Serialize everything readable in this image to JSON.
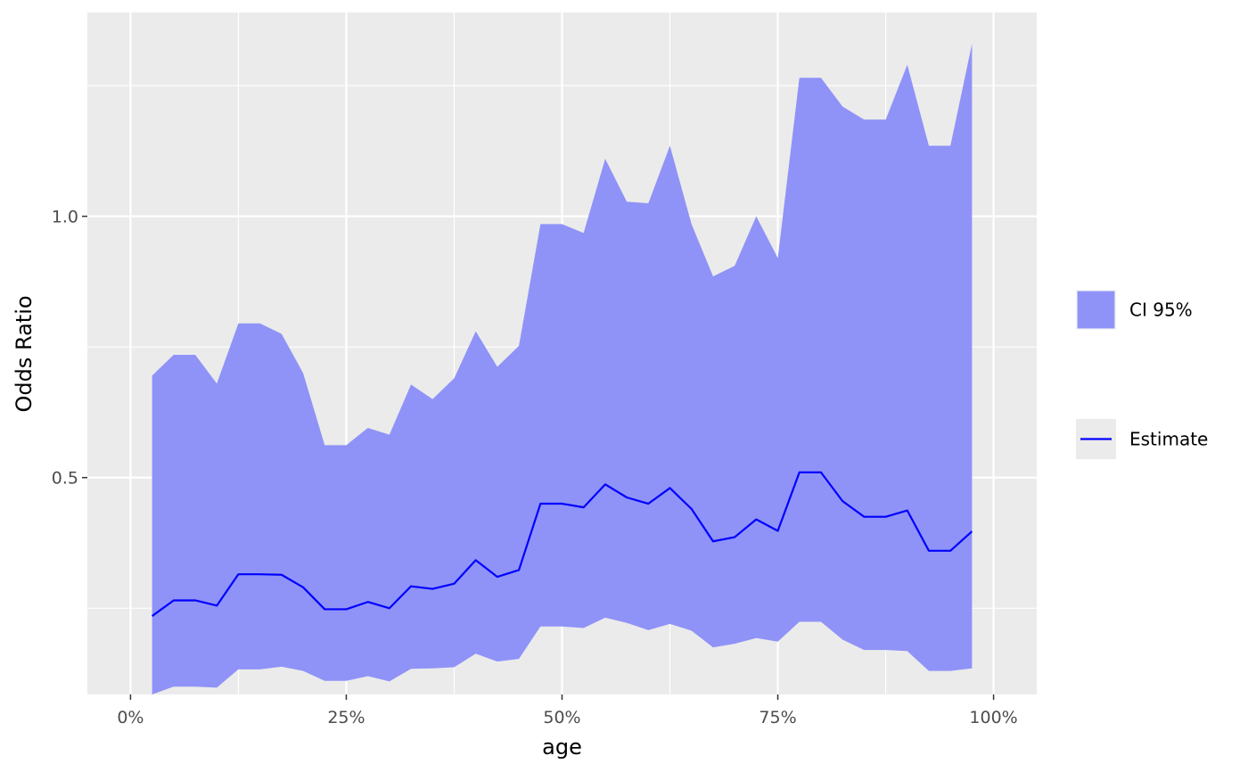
{
  "chart_data": {
    "type": "area",
    "title": "",
    "xlabel": "age",
    "ylabel": "Odds Ratio",
    "xlim": [
      -0.05,
      1.05
    ],
    "ylim": [
      0.085,
      1.39
    ],
    "grid": true,
    "legend_position": "right",
    "x_ticks": [
      {
        "value": 0.0,
        "label": "0%"
      },
      {
        "value": 0.25,
        "label": "25%"
      },
      {
        "value": 0.5,
        "label": "50%"
      },
      {
        "value": 0.75,
        "label": "75%"
      },
      {
        "value": 1.0,
        "label": "100%"
      }
    ],
    "y_ticks": [
      {
        "value": 0.5,
        "label": "0.5"
      },
      {
        "value": 1.0,
        "label": "1.0"
      }
    ],
    "x": [
      0.025,
      0.05,
      0.075,
      0.1,
      0.125,
      0.15,
      0.175,
      0.2,
      0.225,
      0.25,
      0.275,
      0.3,
      0.325,
      0.35,
      0.375,
      0.4,
      0.425,
      0.45,
      0.475,
      0.5,
      0.525,
      0.55,
      0.575,
      0.6,
      0.625,
      0.65,
      0.675,
      0.7,
      0.725,
      0.75,
      0.775,
      0.8,
      0.825,
      0.85,
      0.875,
      0.9,
      0.925,
      0.95,
      0.975
    ],
    "series": [
      {
        "name": "Estimate",
        "role": "line",
        "color": "#0000ff",
        "values": [
          0.235,
          0.265,
          0.265,
          0.255,
          0.315,
          0.315,
          0.314,
          0.29,
          0.248,
          0.248,
          0.262,
          0.25,
          0.292,
          0.287,
          0.297,
          0.342,
          0.31,
          0.323,
          0.45,
          0.45,
          0.443,
          0.487,
          0.462,
          0.45,
          0.48,
          0.44,
          0.378,
          0.386,
          0.42,
          0.398,
          0.51,
          0.51,
          0.455,
          0.425,
          0.425,
          0.437,
          0.36,
          0.36,
          0.397
        ]
      },
      {
        "name": "CI 95%",
        "role": "band",
        "color": "#8f93f7",
        "lower": [
          0.085,
          0.1,
          0.1,
          0.098,
          0.133,
          0.133,
          0.138,
          0.13,
          0.111,
          0.111,
          0.12,
          0.11,
          0.134,
          0.135,
          0.137,
          0.163,
          0.148,
          0.153,
          0.215,
          0.215,
          0.212,
          0.232,
          0.222,
          0.208,
          0.22,
          0.207,
          0.175,
          0.182,
          0.193,
          0.186,
          0.224,
          0.224,
          0.19,
          0.17,
          0.17,
          0.168,
          0.13,
          0.13,
          0.135
        ],
        "upper": [
          0.695,
          0.735,
          0.735,
          0.68,
          0.795,
          0.795,
          0.775,
          0.7,
          0.562,
          0.562,
          0.595,
          0.582,
          0.678,
          0.65,
          0.69,
          0.78,
          0.712,
          0.752,
          0.985,
          0.985,
          0.968,
          1.11,
          1.028,
          1.025,
          1.135,
          0.985,
          0.885,
          0.905,
          1.0,
          0.92,
          1.265,
          1.265,
          1.21,
          1.185,
          1.185,
          1.29,
          1.135,
          1.135,
          1.33
        ]
      }
    ],
    "legend": [
      {
        "label": "CI 95%",
        "key": "fill",
        "color": "#8f93f7"
      },
      {
        "label": "Estimate",
        "key": "line",
        "color": "#0000ff"
      }
    ]
  }
}
